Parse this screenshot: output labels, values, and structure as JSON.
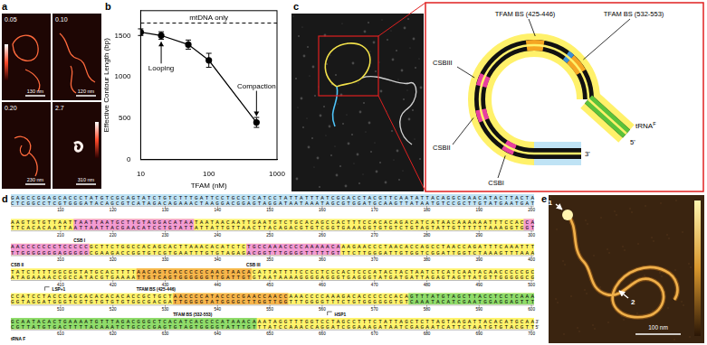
{
  "chart_data": {
    "type": "line",
    "x_label": "TFAM (nM)",
    "y_label": "Effective Contour Length (bp)",
    "x": [
      10,
      20,
      50,
      100,
      500
    ],
    "values": [
      1540,
      1500,
      1390,
      1200,
      450
    ],
    "errors": [
      40,
      45,
      55,
      85,
      60
    ],
    "color": "#000000",
    "marker": "circle",
    "log": "x",
    "xlim": [
      10,
      1000
    ],
    "xticks": [
      10,
      100,
      1000
    ],
    "ylim": [
      0,
      1800
    ],
    "yticks": [
      0,
      500,
      1000,
      1500
    ],
    "grid": false,
    "reference_line": {
      "value": 1650,
      "label": "mtDNA only",
      "line_style": "dashed"
    },
    "annotations": [
      {
        "text": "Looping",
        "x": 20,
        "y": 1500
      },
      {
        "text": "Compaction",
        "x": 500,
        "y": 450
      }
    ]
  },
  "panels": {
    "a": {
      "letter": "a",
      "images": [
        {
          "label": "0.05",
          "scale_bar": "130 nm"
        },
        {
          "label": "0.10",
          "scale_bar": "120 nm"
        },
        {
          "label": "0.20",
          "scale_bar": "230 nm"
        },
        {
          "label": "2.7",
          "scale_bar": "310 nm"
        }
      ]
    },
    "b": {
      "letter": "b"
    },
    "c": {
      "letter": "c",
      "features": [
        {
          "label": "CSBIII",
          "color": "#e8409f"
        },
        {
          "label": "TFAM BS (425-446)",
          "color": "#f5a623"
        },
        {
          "label": "TFAM BS (532-553)",
          "color": "#f5a623"
        },
        {
          "label": "CSBII",
          "color": "#e8409f"
        },
        {
          "label": "CSBI",
          "color": "#e8409f"
        }
      ],
      "tail": {
        "label": "tRNA",
        "sup": "F",
        "color": "#5cc23a"
      },
      "ends": {
        "five": "5'",
        "three": "3'"
      }
    },
    "d": {
      "letter": "d",
      "rows": [
        {
          "start": 101,
          "top": "GAGCCGGAGCACCCTATGTCGCAGTATCTGTCTTTGATTCCTGCCTCATCCTATTATTTATCGCACCTACGTTCAATATTACAGGCGAACATACTTACTA",
          "bottom": "CTCGGCCTCGTGGGATACAGCGTCATAGACAGAAACTAAGGACGGAGTAGGATAATAAATAGCGTGGATGCAAGTTATAATGTCCGCTTGTATGAATGAT",
          "ticks": [
            110,
            120,
            130,
            140,
            150,
            160,
            170,
            180,
            190,
            200
          ]
        },
        {
          "start": 201,
          "top": "AAGTGTGTTAATTAATTAATGCTTGTAGGACATAATAATAACAATTGAATGTCTGCACAGCCACTTTCCACACAGACATCATAACAAAAAATTTCCACCA",
          "bottom": "TTCACACAATTAATTAATTACGAACATCCTGTATTATTATTGTTAACTTACAGACGTGTCGGTGAAAGGTGTGTCTGTAGTATTGTTTTTTAAAGGTGGT",
          "ticks": [
            210,
            220,
            230,
            240,
            250,
            260,
            270,
            280,
            290,
            300
          ]
        },
        {
          "start": 301,
          "top": "AACCCCCCCTCCCCCGCTTCTGGCCACAGCACTTAAACACATCTCTGCCAAACCCCAAAAACAAAGAACCCTAACACCAGCCTAACCAGATTTCAAATTT",
          "bottom": "TTGGGGGGGAGGGGGCGAAGACCGGTGTCGTGAATTTGTGTAGAGACGGTTTGGGGTTTTTGTTTCTTGGGATTGTGGTCGGATTGGTCTAAAGTTTAAA",
          "ticks": [
            310,
            320,
            330,
            340,
            350,
            360,
            370,
            380,
            390,
            400
          ]
        },
        {
          "start": 401,
          "top": "TATCTTTTGGCGGTATGCACTTTTAACAGTCACCCCCCAACTAACACATTATTTTCCCCTCCCACTCCCATACTACTAATCTCATCAATACAACCCCCGC",
          "bottom": "ATAGAAAACCGCCATACGTGAAAATTGTCAGTGGGGGGTTGATTGTGTAATAAAAGGGGAGGGTGAGGGTATGATGATTAGAGTAGTTATGTTGGGGGCG",
          "ticks": [
            410,
            420,
            430,
            440,
            450,
            460,
            470,
            480,
            490,
            500
          ]
        },
        {
          "start": 501,
          "top": "CCATCCTACCCAGCACACACACACCGCTGCTAACCCCATACCCCGAACCAACCAAACCCCAAAGACACCCCCCACAGTTTATGTAGCTTACCTCCTCAAA",
          "bottom": "GGTAGGATGGGTCGTGTGTGTGTGGCGACGATTGGGGTATGGGGCTTGGTTGGTTTGGGGTTTCTGTGGGGGGTGTCAAATACATCGAATGGAGGAGTTT",
          "ticks": [
            510,
            520,
            530,
            540,
            550,
            560,
            570,
            580,
            590,
            600
          ]
        },
        {
          "start": 601,
          "top": "GCAATACACTGAAAATGTTTAGACGGGCTCACATCACCCCATAAACAAATAGGTTTGGTCCTAGCCTTTCTATTAGCTCTTAGTAAGATTACACATGCAA",
          "bottom": "CGTTATGTGACTTTTACAAATCTGCCCGAGTGTAGTGGGGTATTTGTTTATCCAAACCAGGATCGGAAAGATAATCGAGAATCATTCTAATGTGTACGTT",
          "ticks": [
            610,
            620,
            630,
            640,
            650,
            660,
            670,
            680,
            690,
            700
          ]
        }
      ],
      "end_labels": {
        "top": "3'",
        "bottom": "5'"
      },
      "highlights": [
        {
          "start": 101,
          "end": 200,
          "color": "#bfe3f5"
        },
        {
          "start": 201,
          "end": 700,
          "color": "#fff36b"
        }
      ],
      "features": [
        {
          "label": "CSB I",
          "start": 213,
          "end": 235,
          "color": "#f39bd2"
        },
        {
          "label": "CSB II",
          "start": 299,
          "end": 315,
          "color": "#f39bd2"
        },
        {
          "label": "CSB III",
          "start": 346,
          "end": 363,
          "color": "#f39bd2"
        },
        {
          "label": "LSP+1",
          "start": 407,
          "end": 407
        },
        {
          "label": "TFAM BS (425-446)",
          "start": 425,
          "end": 446,
          "color": "#f7b54a"
        },
        {
          "label": "TFAM BS (532-553)",
          "start": 532,
          "end": 553,
          "color": "#f7b54a"
        },
        {
          "label": "HSP1",
          "start": 561,
          "end": 561
        },
        {
          "label": "tRNA F",
          "start": 577,
          "end": 647,
          "color": "#8fdc6a"
        }
      ]
    },
    "e": {
      "letter": "e",
      "markers": [
        "1",
        "2"
      ],
      "scale_bar": "100 nm"
    }
  }
}
